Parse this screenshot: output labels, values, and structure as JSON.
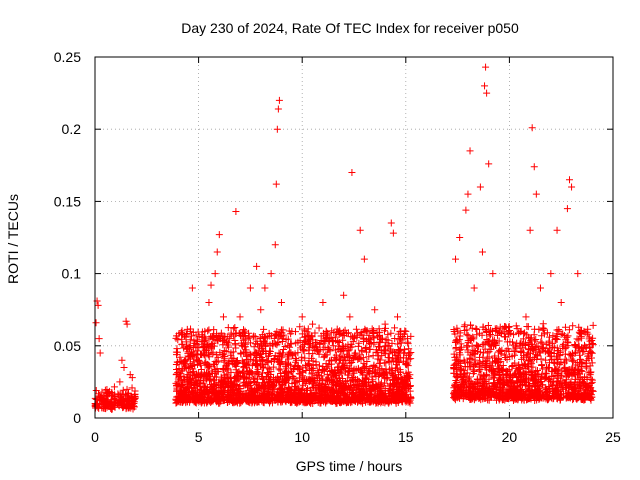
{
  "chart_data": {
    "type": "scatter",
    "title": "Day 230 of 2024, Rate Of TEC Index for receiver p050",
    "xlabel": "GPS time / hours",
    "ylabel": "ROTI / TECUs",
    "xlim": [
      0,
      25
    ],
    "ylim": [
      0,
      0.25
    ],
    "x_ticks": [
      "0",
      "5",
      "10",
      "15",
      "20",
      "25"
    ],
    "y_ticks": [
      "0",
      "0.05",
      "0.1",
      "0.15",
      "0.2",
      "0.25"
    ],
    "grid": true,
    "marker": "+",
    "color": "#ff0000",
    "series": [
      {
        "points": [
          [
            0.05,
            0.066
          ],
          [
            0.1,
            0.081
          ],
          [
            0.15,
            0.078
          ],
          [
            0.2,
            0.055
          ],
          [
            0.25,
            0.045
          ],
          [
            0.3,
            0.012
          ],
          [
            0.5,
            0.008
          ],
          [
            0.8,
            0.006
          ],
          [
            1.0,
            0.011
          ],
          [
            1.2,
            0.025
          ],
          [
            1.3,
            0.04
          ],
          [
            1.4,
            0.035
          ],
          [
            1.5,
            0.067
          ],
          [
            1.55,
            0.065
          ],
          [
            1.7,
            0.03
          ],
          [
            1.8,
            0.028
          ],
          [
            1.9,
            0.015
          ],
          [
            4.0,
            0.025
          ],
          [
            4.2,
            0.012
          ],
          [
            4.5,
            0.03
          ],
          [
            4.6,
            0.06
          ],
          [
            4.7,
            0.09
          ],
          [
            5.0,
            0.04
          ],
          [
            5.3,
            0.06
          ],
          [
            5.5,
            0.08
          ],
          [
            5.6,
            0.092
          ],
          [
            5.8,
            0.1
          ],
          [
            5.9,
            0.115
          ],
          [
            6.0,
            0.127
          ],
          [
            6.2,
            0.07
          ],
          [
            6.5,
            0.055
          ],
          [
            6.8,
            0.143
          ],
          [
            7.0,
            0.07
          ],
          [
            7.5,
            0.09
          ],
          [
            7.8,
            0.105
          ],
          [
            8.0,
            0.075
          ],
          [
            8.2,
            0.09
          ],
          [
            8.5,
            0.1
          ],
          [
            8.7,
            0.12
          ],
          [
            8.75,
            0.162
          ],
          [
            8.8,
            0.2
          ],
          [
            8.85,
            0.214
          ],
          [
            8.9,
            0.22
          ],
          [
            9.0,
            0.08
          ],
          [
            9.5,
            0.06
          ],
          [
            10.0,
            0.07
          ],
          [
            10.5,
            0.065
          ],
          [
            11.0,
            0.08
          ],
          [
            11.5,
            0.05
          ],
          [
            12.0,
            0.085
          ],
          [
            12.3,
            0.07
          ],
          [
            12.4,
            0.17
          ],
          [
            12.8,
            0.13
          ],
          [
            13.0,
            0.11
          ],
          [
            13.5,
            0.075
          ],
          [
            14.0,
            0.065
          ],
          [
            14.3,
            0.135
          ],
          [
            14.4,
            0.128
          ],
          [
            14.6,
            0.07
          ],
          [
            15.0,
            0.06
          ],
          [
            17.4,
            0.11
          ],
          [
            17.6,
            0.125
          ],
          [
            17.9,
            0.144
          ],
          [
            18.0,
            0.155
          ],
          [
            18.1,
            0.185
          ],
          [
            18.3,
            0.09
          ],
          [
            18.6,
            0.16
          ],
          [
            18.7,
            0.115
          ],
          [
            18.8,
            0.23
          ],
          [
            18.85,
            0.243
          ],
          [
            18.9,
            0.225
          ],
          [
            19.0,
            0.176
          ],
          [
            19.2,
            0.1
          ],
          [
            19.5,
            0.03
          ],
          [
            20.0,
            0.02
          ],
          [
            20.5,
            0.05
          ],
          [
            20.8,
            0.07
          ],
          [
            21.0,
            0.13
          ],
          [
            21.1,
            0.201
          ],
          [
            21.2,
            0.174
          ],
          [
            21.3,
            0.155
          ],
          [
            21.5,
            0.09
          ],
          [
            22.0,
            0.1
          ],
          [
            22.3,
            0.13
          ],
          [
            22.5,
            0.08
          ],
          [
            22.8,
            0.145
          ],
          [
            22.9,
            0.165
          ],
          [
            23.0,
            0.16
          ],
          [
            23.3,
            0.1
          ],
          [
            23.6,
            0.06
          ],
          [
            23.9,
            0.03
          ]
        ],
        "segments": [
          {
            "range": [
              0.0,
              1.95
            ],
            "base": 0.006,
            "spread": 0.012,
            "n": 200
          },
          {
            "range": [
              3.9,
              15.25
            ],
            "base": 0.01,
            "spread": 0.05,
            "n": 2600
          },
          {
            "range": [
              17.3,
              24.05
            ],
            "base": 0.012,
            "spread": 0.05,
            "n": 1400
          }
        ]
      }
    ]
  }
}
